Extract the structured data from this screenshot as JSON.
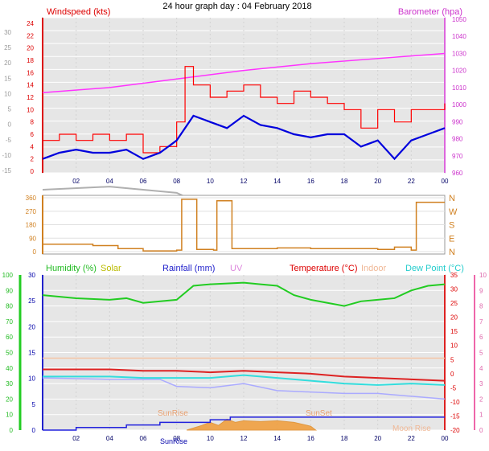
{
  "header": {
    "title": "24 hour graph day : 04 February 2018"
  },
  "x_axis": {
    "ticks": [
      "02",
      "04",
      "06",
      "08",
      "10",
      "12",
      "14",
      "16",
      "18",
      "20",
      "22",
      "00"
    ]
  },
  "chart_data": [
    {
      "type": "line",
      "legend": {
        "windspeed": "Windspeed (kts)",
        "barometer": "Barometer (hpa)"
      },
      "y_left_kts": {
        "range": [
          0,
          24
        ],
        "ticks": [
          "0",
          "2",
          "4",
          "6",
          "8",
          "10",
          "12",
          "14",
          "16",
          "18",
          "20",
          "22",
          "24"
        ]
      },
      "y_left_temp": {
        "range": [
          -15,
          30
        ],
        "ticks": [
          "-15",
          "-10",
          "-5",
          "0",
          "5",
          "10",
          "15",
          "20",
          "25",
          "30"
        ]
      },
      "y_right_hpa": {
        "range": [
          960,
          1050
        ],
        "ticks": [
          "960",
          "970",
          "980",
          "990",
          "1000",
          "1010",
          "1020",
          "1030",
          "1040",
          "1050"
        ]
      },
      "x_hours": [
        0,
        24
      ],
      "series": [
        {
          "name": "Barometer (hpa)",
          "color": "#ff33ff",
          "points": [
            [
              0,
              1007
            ],
            [
              4,
              1010
            ],
            [
              8,
              1015
            ],
            [
              12,
              1020
            ],
            [
              16,
              1024
            ],
            [
              20,
              1027
            ],
            [
              24,
              1030
            ]
          ]
        },
        {
          "name": "Windspeed (kts)",
          "color": "#ff0000",
          "points": [
            [
              0,
              5
            ],
            [
              1,
              6
            ],
            [
              2,
              5
            ],
            [
              3,
              6
            ],
            [
              4,
              5
            ],
            [
              5,
              6
            ],
            [
              6,
              3
            ],
            [
              7,
              4
            ],
            [
              8,
              8
            ],
            [
              8.5,
              17
            ],
            [
              9,
              14
            ],
            [
              10,
              12
            ],
            [
              11,
              13
            ],
            [
              12,
              14
            ],
            [
              13,
              12
            ],
            [
              14,
              11
            ],
            [
              15,
              13
            ],
            [
              16,
              12
            ],
            [
              17,
              11
            ],
            [
              18,
              10
            ],
            [
              19,
              7
            ],
            [
              20,
              10
            ],
            [
              21,
              8
            ],
            [
              22,
              10
            ],
            [
              23,
              10
            ],
            [
              24,
              11
            ]
          ]
        },
        {
          "color": "#0000dd",
          "points": [
            [
              0,
              2
            ],
            [
              1,
              3
            ],
            [
              2,
              3.5
            ],
            [
              3,
              3
            ],
            [
              4,
              3
            ],
            [
              5,
              3.5
            ],
            [
              6,
              2
            ],
            [
              7,
              3
            ],
            [
              8,
              5
            ],
            [
              9,
              9
            ],
            [
              10,
              8
            ],
            [
              11,
              7
            ],
            [
              12,
              9
            ],
            [
              13,
              7.5
            ],
            [
              14,
              7
            ],
            [
              15,
              6
            ],
            [
              16,
              5.5
            ],
            [
              17,
              6
            ],
            [
              18,
              6
            ],
            [
              19,
              4
            ],
            [
              20,
              5
            ],
            [
              21,
              2
            ],
            [
              22,
              5
            ],
            [
              23,
              6
            ],
            [
              24,
              7
            ]
          ]
        },
        {
          "color": "#b0b0b0",
          "points": [
            [
              0,
              -3
            ],
            [
              4,
              -2.5
            ],
            [
              8,
              -3.5
            ],
            [
              10,
              -6
            ],
            [
              12,
              -6
            ],
            [
              14,
              -5
            ],
            [
              16,
              -6
            ],
            [
              18,
              -7
            ],
            [
              20,
              -7
            ],
            [
              22,
              -8
            ],
            [
              24,
              -7
            ]
          ]
        },
        {
          "color": "#c8c8c8",
          "points": [
            [
              0,
              -4
            ],
            [
              6,
              -4
            ],
            [
              8,
              -6
            ],
            [
              10,
              -8
            ],
            [
              12,
              -9
            ],
            [
              14,
              -9
            ],
            [
              16,
              -8
            ],
            [
              18,
              -8
            ],
            [
              20,
              -9
            ],
            [
              24,
              -8.5
            ]
          ]
        }
      ]
    },
    {
      "type": "scatter",
      "y_labels": [
        "N",
        "W",
        "S",
        "E",
        "N"
      ],
      "y_ticks": [
        "0",
        "90",
        "180",
        "270",
        "360"
      ],
      "y_range": [
        0,
        360
      ],
      "series": [
        {
          "color": "#d08020",
          "points": [
            [
              0,
              50
            ],
            [
              3,
              40
            ],
            [
              4.5,
              20
            ],
            [
              6,
              5
            ],
            [
              8,
              10
            ],
            [
              8.3,
              350
            ],
            [
              9.0,
              350
            ],
            [
              9.2,
              15
            ],
            [
              10.2,
              10
            ],
            [
              10.4,
              340
            ],
            [
              11,
              340
            ],
            [
              11.3,
              20
            ],
            [
              14,
              25
            ],
            [
              16,
              20
            ],
            [
              18,
              20
            ],
            [
              20,
              15
            ],
            [
              21,
              30
            ],
            [
              22,
              10
            ],
            [
              22.3,
              330
            ],
            [
              24,
              330
            ]
          ]
        }
      ]
    },
    {
      "type": "line",
      "legend": {
        "humidity": "Humidity (%)",
        "solar": "Solar",
        "rainfall": "Rainfall (mm)",
        "uv": "UV",
        "temperature": "Temperature (°C)",
        "indoor": "Indoor",
        "dewpoint": "Dew Point (°C)"
      },
      "y_left_pct": {
        "range": [
          0,
          100
        ],
        "ticks": [
          "0",
          "10",
          "20",
          "30",
          "40",
          "50",
          "60",
          "70",
          "80",
          "90",
          "100"
        ]
      },
      "y_left_mm": {
        "range": [
          0,
          30
        ],
        "ticks": [
          "0",
          "5",
          "10",
          "15",
          "20",
          "25",
          "30"
        ]
      },
      "y_right_c": {
        "range": [
          -20,
          35
        ],
        "ticks": [
          "-20",
          "-15",
          "-10",
          "-5",
          "0",
          "5",
          "10",
          "15",
          "20",
          "25",
          "30",
          "35"
        ]
      },
      "y_right_uv": {
        "range": [
          0,
          10
        ],
        "ticks": [
          "0",
          "1",
          "2",
          "3",
          "4",
          "5",
          "6",
          "7",
          "8",
          "9",
          "10"
        ]
      },
      "annotations": {
        "sunrise": "SunRise",
        "sunset": "SunSet",
        "moonrise": "Moon Rise",
        "sunrise_axis": "SunRise"
      },
      "series": [
        {
          "name": "Humidity (%)",
          "color": "#22cc22",
          "points": [
            [
              0,
              87
            ],
            [
              2,
              85
            ],
            [
              4,
              84
            ],
            [
              5,
              85
            ],
            [
              6,
              82
            ],
            [
              8,
              84
            ],
            [
              9,
              93
            ],
            [
              10,
              94
            ],
            [
              12,
              95
            ],
            [
              13,
              94
            ],
            [
              14,
              93
            ],
            [
              15,
              87
            ],
            [
              16,
              84
            ],
            [
              17,
              82
            ],
            [
              18,
              80
            ],
            [
              19,
              83
            ],
            [
              20,
              84
            ],
            [
              21,
              85
            ],
            [
              22,
              90
            ],
            [
              23,
              93
            ],
            [
              24,
              94
            ]
          ]
        },
        {
          "name": "Temperature (°C)",
          "color": "#dd2222",
          "points": [
            [
              0,
              1.5
            ],
            [
              4,
              1.5
            ],
            [
              6,
              1
            ],
            [
              8,
              1
            ],
            [
              10,
              0.5
            ],
            [
              12,
              1
            ],
            [
              14,
              0.5
            ],
            [
              16,
              0
            ],
            [
              18,
              -1
            ],
            [
              20,
              -1.5
            ],
            [
              22,
              -2
            ],
            [
              24,
              -2.5
            ]
          ]
        },
        {
          "name": "Dew Point (°C)",
          "color": "#33dddd",
          "points": [
            [
              0,
              -1
            ],
            [
              4,
              -1
            ],
            [
              6,
              -1.5
            ],
            [
              8,
              -1.5
            ],
            [
              10,
              -1.5
            ],
            [
              12,
              -0.5
            ],
            [
              14,
              -1.5
            ],
            [
              16,
              -2.5
            ],
            [
              18,
              -3.5
            ],
            [
              20,
              -4
            ],
            [
              22,
              -3.5
            ],
            [
              24,
              -4
            ]
          ]
        },
        {
          "name": "Indoor",
          "color": "#f4c4a4",
          "points": [
            [
              0,
              5.5
            ],
            [
              24,
              5.5
            ]
          ]
        },
        {
          "color": "#aaaaff",
          "points": [
            [
              0,
              -1.5
            ],
            [
              4,
              -2
            ],
            [
              7,
              -2
            ],
            [
              8,
              -4.5
            ],
            [
              10,
              -5
            ],
            [
              12,
              -3.5
            ],
            [
              14,
              -6
            ],
            [
              16,
              -6.5
            ],
            [
              18,
              -7
            ],
            [
              20,
              -7
            ],
            [
              22,
              -8
            ],
            [
              24,
              -9
            ]
          ]
        },
        {
          "name": "Rainfall (mm)",
          "color": "#2222dd",
          "points": [
            [
              0,
              0
            ],
            [
              2,
              0.5
            ],
            [
              5,
              1
            ],
            [
              7,
              1.5
            ],
            [
              10,
              2
            ],
            [
              11,
              2
            ],
            [
              11.2,
              2.5
            ],
            [
              12,
              2.5
            ],
            [
              24,
              2.5
            ]
          ]
        },
        {
          "name": "Solar",
          "color": "#e8a24a",
          "points": [
            [
              8.6,
              0
            ],
            [
              9.5,
              3
            ],
            [
              10,
              5
            ],
            [
              10.5,
              3
            ],
            [
              11,
              7
            ],
            [
              11.5,
              5
            ],
            [
              12,
              6
            ],
            [
              13,
              5.5
            ],
            [
              14,
              6
            ],
            [
              15,
              5
            ],
            [
              16,
              2.5
            ],
            [
              16.3,
              0
            ]
          ]
        }
      ]
    }
  ]
}
